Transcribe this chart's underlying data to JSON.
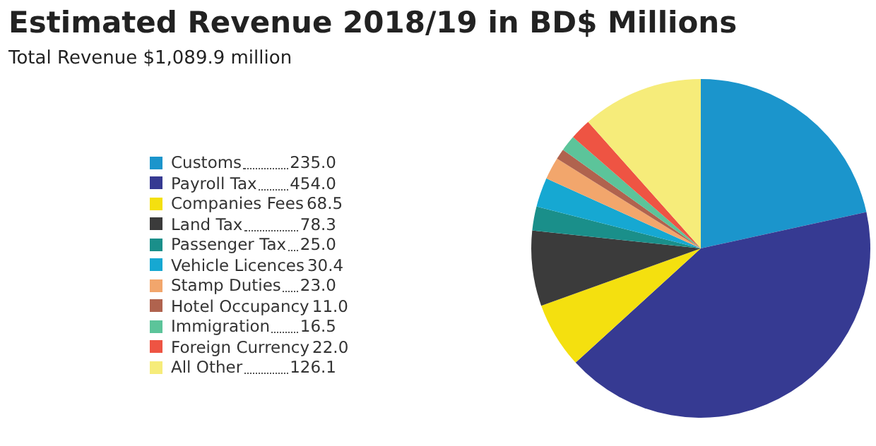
{
  "chart_data": {
    "type": "pie",
    "title": "Estimated Revenue 2018/19 in BD$ Millions",
    "subtitle": "Total Revenue $1,089.9 million",
    "categories": [
      "Customs",
      "Payroll Tax",
      "Companies Fees",
      "Land Tax",
      "Passenger Tax",
      "Vehicle Licences",
      "Stamp Duties",
      "Hotel Occupancy",
      "Immigration",
      "Foreign Currency",
      "All Other"
    ],
    "values": [
      235.0,
      454.0,
      68.5,
      78.3,
      25.0,
      30.4,
      23.0,
      11.0,
      16.5,
      22.0,
      126.1
    ],
    "value_labels": [
      "235.0",
      "454.0",
      "68.5",
      "78.3",
      "25.0",
      "30.4",
      "23.0",
      "11.0",
      "16.5",
      "22.0",
      "126.1"
    ],
    "colors": [
      "#1b95cc",
      "#363a92",
      "#f4e00f",
      "#3b3b3b",
      "#1a8f8a",
      "#16a8d2",
      "#f2a66c",
      "#b0634e",
      "#5cc49a",
      "#ee5443",
      "#f6ec7a"
    ],
    "legend": "left"
  }
}
